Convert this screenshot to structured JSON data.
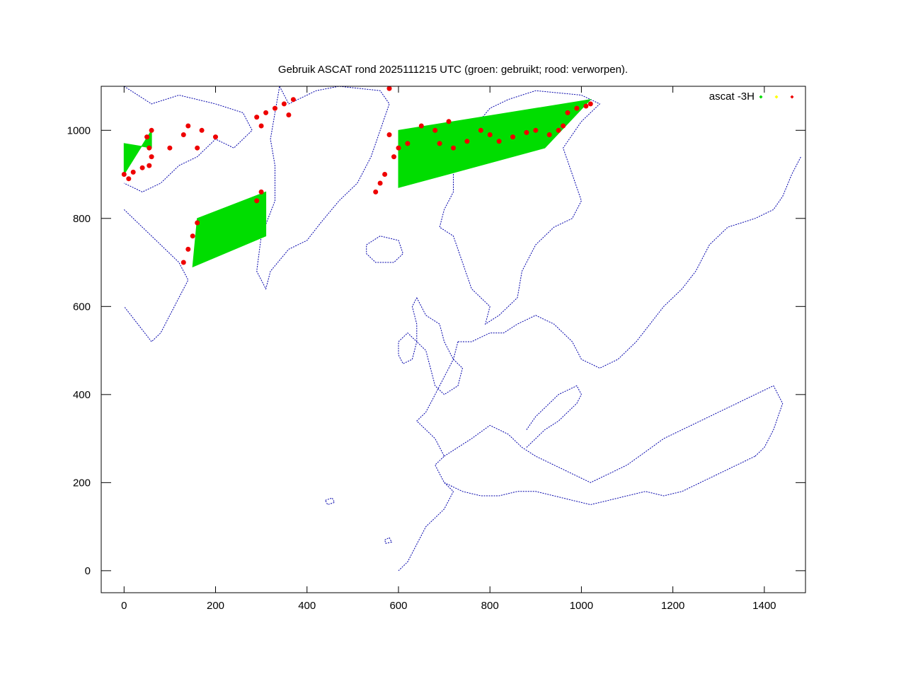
{
  "chart_data": {
    "type": "scatter",
    "title": "Gebruik ASCAT rond 2025111215 UTC (groen: gebruikt; rood: verworpen).",
    "xlabel": "",
    "ylabel": "",
    "xlim": [
      -50,
      1490
    ],
    "ylim": [
      -50,
      1100
    ],
    "x_ticks": [
      0,
      200,
      400,
      600,
      800,
      1000,
      1200,
      1400
    ],
    "y_ticks": [
      0,
      200,
      400,
      600,
      800,
      1000
    ],
    "x_tick_labels": [
      "0",
      "200",
      "400",
      "600",
      "800",
      "1000",
      "1200",
      "1400"
    ],
    "y_tick_labels": [
      "0",
      "200",
      "400",
      "600",
      "800",
      "1000"
    ],
    "grid": false,
    "legend": {
      "position": "top-right",
      "label": "ascat -3H"
    },
    "colors": {
      "used": "#00dd00",
      "uncertain": "#ffff00",
      "rejected": "#ee0000",
      "coast": "#0000aa",
      "frame": "#000000"
    },
    "series": [
      {
        "status": "used",
        "color": "#00dd00",
        "regions": [
          [
            [
              0,
              900
            ],
            [
              60,
              1000
            ],
            [
              60,
              960
            ],
            [
              0,
              970
            ]
          ],
          [
            [
              150,
              690
            ],
            [
              310,
              760
            ],
            [
              310,
              860
            ],
            [
              160,
              800
            ]
          ],
          [
            [
              600,
              870
            ],
            [
              920,
              960
            ],
            [
              1020,
              1070
            ],
            [
              600,
              1000
            ]
          ]
        ]
      },
      {
        "status": "uncertain",
        "color": "#ffff00",
        "regions": []
      },
      {
        "status": "rejected",
        "color": "#ee0000",
        "points": [
          [
            0,
            900
          ],
          [
            10,
            890
          ],
          [
            20,
            905
          ],
          [
            40,
            915
          ],
          [
            55,
            920
          ],
          [
            60,
            940
          ],
          [
            55,
            960
          ],
          [
            50,
            985
          ],
          [
            60,
            1000
          ],
          [
            100,
            960
          ],
          [
            130,
            990
          ],
          [
            160,
            960
          ],
          [
            200,
            985
          ],
          [
            170,
            1000
          ],
          [
            140,
            1010
          ],
          [
            130,
            700
          ],
          [
            140,
            730
          ],
          [
            150,
            760
          ],
          [
            160,
            790
          ],
          [
            300,
            860
          ],
          [
            290,
            840
          ],
          [
            290,
            1030
          ],
          [
            300,
            1010
          ],
          [
            310,
            1040
          ],
          [
            330,
            1050
          ],
          [
            350,
            1060
          ],
          [
            370,
            1070
          ],
          [
            360,
            1035
          ],
          [
            580,
            990
          ],
          [
            600,
            960
          ],
          [
            620,
            970
          ],
          [
            590,
            940
          ],
          [
            570,
            900
          ],
          [
            560,
            880
          ],
          [
            550,
            860
          ],
          [
            650,
            1010
          ],
          [
            680,
            1000
          ],
          [
            710,
            1020
          ],
          [
            690,
            970
          ],
          [
            720,
            960
          ],
          [
            750,
            975
          ],
          [
            780,
            1000
          ],
          [
            800,
            990
          ],
          [
            820,
            975
          ],
          [
            850,
            985
          ],
          [
            880,
            995
          ],
          [
            900,
            1000
          ],
          [
            930,
            990
          ],
          [
            950,
            1000
          ],
          [
            960,
            1010
          ],
          [
            970,
            1040
          ],
          [
            990,
            1050
          ],
          [
            1010,
            1055
          ],
          [
            1020,
            1060
          ],
          [
            580,
            1095
          ]
        ]
      }
    ]
  }
}
